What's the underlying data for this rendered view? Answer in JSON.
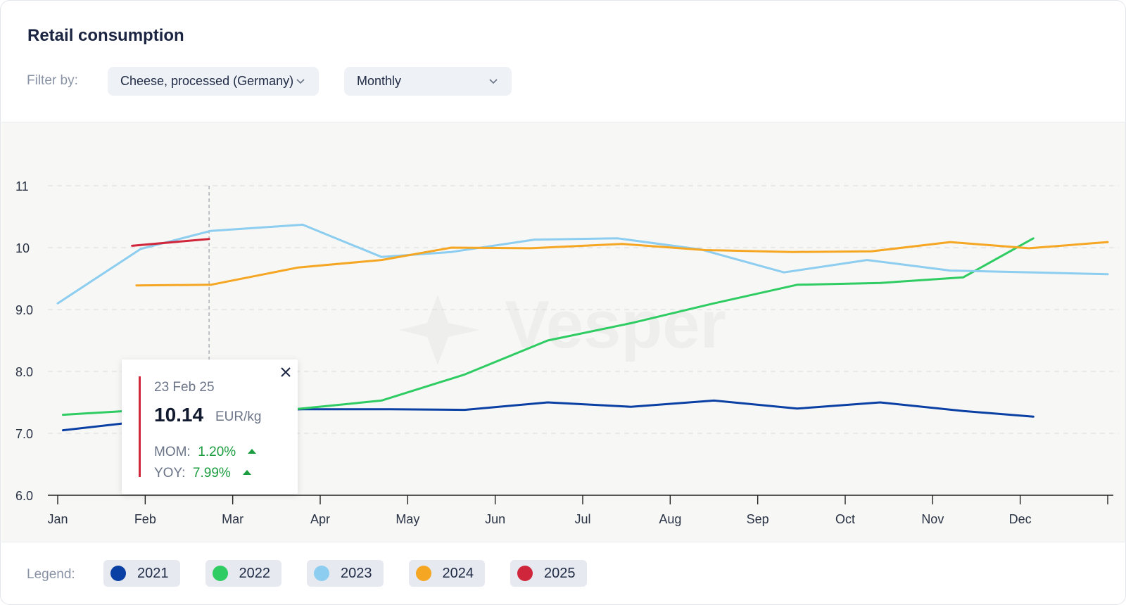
{
  "header": {
    "title": "Retail consumption",
    "filter_label": "Filter by:",
    "product_filter": "Cheese, processed (Germany)",
    "period_filter": "Monthly"
  },
  "icons": {
    "dropdown": "chevron-down-icon",
    "close": "close-icon",
    "trend": "arrow-up-icon",
    "watermark": "vesper-logo"
  },
  "watermark": "Vesper",
  "tooltip": {
    "date": "23 Feb 25",
    "value": "10.14",
    "unit": "EUR/kg",
    "mom_label": "MOM:",
    "mom_value": "1.20%",
    "yoy_label": "YOY:",
    "yoy_value": "7.99%"
  },
  "legend": {
    "label": "Legend:",
    "items": [
      {
        "name": "2021",
        "color": "#0a3fa3"
      },
      {
        "name": "2022",
        "color": "#2ecc62"
      },
      {
        "name": "2023",
        "color": "#8ccdf0"
      },
      {
        "name": "2024",
        "color": "#f5a623"
      },
      {
        "name": "2025",
        "color": "#d0263b"
      }
    ]
  },
  "chart_data": {
    "type": "line",
    "title": "Retail consumption",
    "xlabel": "",
    "ylabel": "",
    "x_ticks": [
      "Jan",
      "Feb",
      "Mar",
      "Apr",
      "May",
      "Jun",
      "Jul",
      "Aug",
      "Sep",
      "Oct",
      "Nov",
      "Dec"
    ],
    "y_ticks": [
      "6.0",
      "7.0",
      "8.0",
      "9.0",
      "10",
      "11"
    ],
    "ylim": [
      6,
      11.3
    ],
    "xlim": [
      1,
      13
    ],
    "grid": true,
    "hover_marker_x": 2.73,
    "series": [
      {
        "name": "2021",
        "color": "#0a3fa3",
        "points": [
          [
            1.06,
            7.05
          ],
          [
            2.0,
            7.2
          ],
          [
            2.5,
            7.35
          ],
          [
            3.8,
            7.39
          ],
          [
            4.8,
            7.39
          ],
          [
            5.65,
            7.38
          ],
          [
            6.6,
            7.5
          ],
          [
            7.55,
            7.43
          ],
          [
            8.5,
            7.53
          ],
          [
            9.45,
            7.4
          ],
          [
            10.4,
            7.5
          ],
          [
            11.35,
            7.36
          ],
          [
            12.15,
            7.27
          ]
        ]
      },
      {
        "name": "2022",
        "color": "#2ecc62",
        "points": [
          [
            1.06,
            7.3
          ],
          [
            2.0,
            7.38
          ],
          [
            3.5,
            7.36
          ],
          [
            4.7,
            7.53
          ],
          [
            5.65,
            7.95
          ],
          [
            6.6,
            8.5
          ],
          [
            7.55,
            8.78
          ],
          [
            8.5,
            9.1
          ],
          [
            9.45,
            9.4
          ],
          [
            10.4,
            9.43
          ],
          [
            11.35,
            9.52
          ],
          [
            12.15,
            10.15
          ]
        ]
      },
      {
        "name": "2023",
        "color": "#8ccdf0",
        "points": [
          [
            1.0,
            9.1
          ],
          [
            1.95,
            9.98
          ],
          [
            2.75,
            10.27
          ],
          [
            3.8,
            10.37
          ],
          [
            4.7,
            9.85
          ],
          [
            5.5,
            9.93
          ],
          [
            6.45,
            10.13
          ],
          [
            7.4,
            10.15
          ],
          [
            8.35,
            9.97
          ],
          [
            9.3,
            9.6
          ],
          [
            10.25,
            9.8
          ],
          [
            11.2,
            9.63
          ],
          [
            12.15,
            9.6
          ],
          [
            13.0,
            9.57
          ]
        ]
      },
      {
        "name": "2024",
        "color": "#f5a623",
        "points": [
          [
            1.9,
            9.39
          ],
          [
            2.75,
            9.4
          ],
          [
            3.75,
            9.68
          ],
          [
            4.7,
            9.8
          ],
          [
            5.5,
            10.0
          ],
          [
            6.4,
            9.99
          ],
          [
            7.45,
            10.06
          ],
          [
            8.4,
            9.96
          ],
          [
            9.4,
            9.93
          ],
          [
            10.3,
            9.94
          ],
          [
            11.2,
            10.09
          ],
          [
            12.1,
            9.99
          ],
          [
            13.0,
            10.09
          ]
        ]
      },
      {
        "name": "2025",
        "color": "#d0263b",
        "points": [
          [
            1.85,
            10.03
          ],
          [
            2.73,
            10.14
          ]
        ]
      }
    ]
  }
}
